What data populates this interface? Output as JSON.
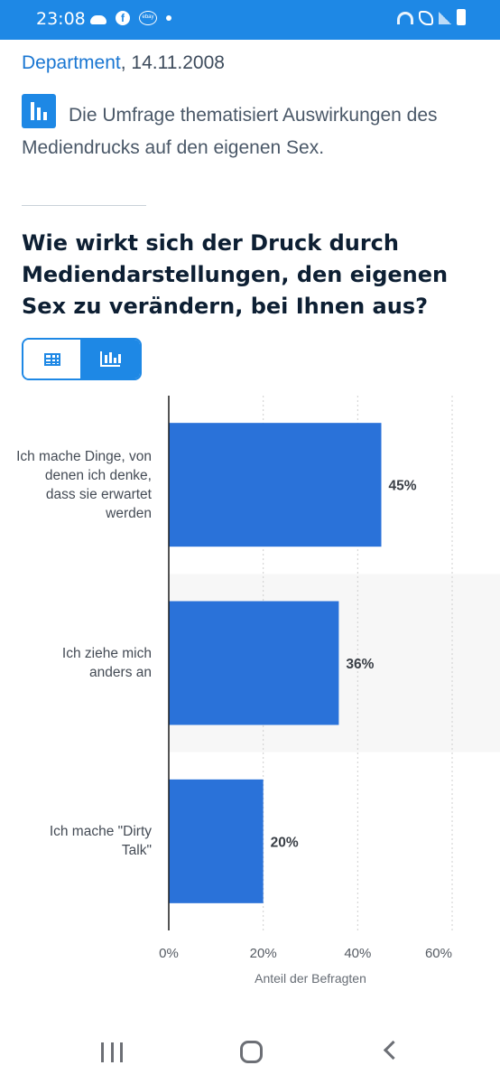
{
  "status_bar": {
    "time": "23:08",
    "icons": [
      "cloud-icon",
      "facebook-icon",
      "ebay-icon",
      "dot-icon",
      "wifi-icon",
      "wifi-calling-icon",
      "signal-icon",
      "battery-icon"
    ],
    "color": "#1e88e5"
  },
  "meta": {
    "source": "Department",
    "date": ", 14.11.2008"
  },
  "description": "Die Umfrage thematisiert Auswirkungen des Mediendrucks auf den eigenen Sex.",
  "question": "Wie wirkt sich der Druck durch Mediendarstellungen, den eigenen Sex zu verändern, bei Ihnen aus?",
  "view_toggle": {
    "selected": "chart",
    "options": [
      "table-icon",
      "bar-chart-icon"
    ]
  },
  "chart_data": {
    "type": "bar",
    "orientation": "horizontal",
    "categories": [
      "Ich mache Dinge, von denen ich denke, dass sie erwartet werden",
      "Ich ziehe mich anders an",
      "Ich mache \"Dirty Talk\""
    ],
    "values": [
      45,
      36,
      20
    ],
    "value_labels": [
      "45%",
      "36%",
      "20%"
    ],
    "xlabel": "Anteil der Befragten",
    "xlim": [
      0,
      60
    ],
    "xticks": [
      0,
      20,
      40,
      60
    ],
    "xtick_labels": [
      "0%",
      "20%",
      "40%",
      "60%"
    ],
    "grid": true,
    "bar_color": "#2a72d9"
  },
  "nav_bar": {
    "icons": [
      "recent-apps-icon",
      "home-icon",
      "back-icon"
    ]
  }
}
